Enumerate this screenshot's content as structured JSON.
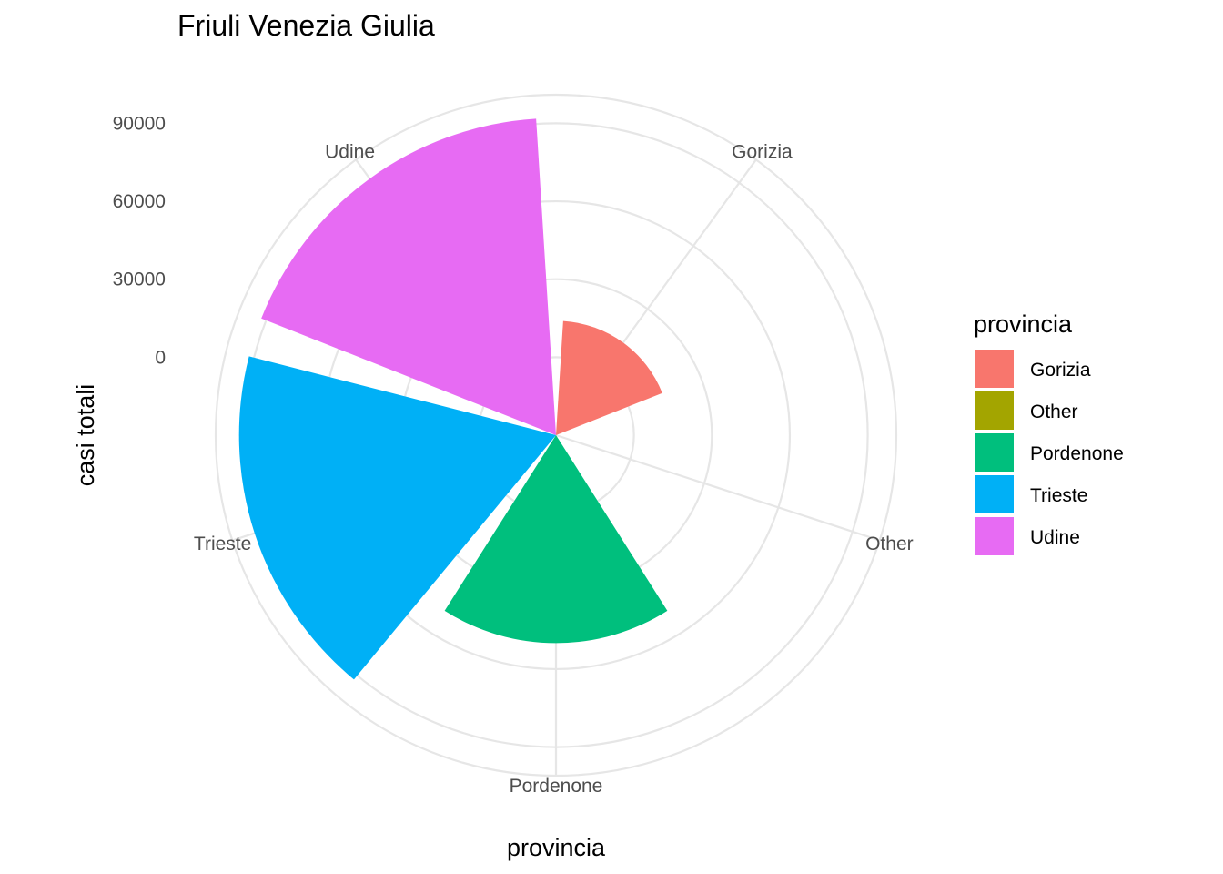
{
  "chart_data": {
    "type": "bar",
    "coord": "polar",
    "title": "Friuli Venezia Giulia",
    "xlabel": "provincia",
    "ylabel": "casi totali",
    "categories": [
      "Gorizia",
      "Other",
      "Pordenone",
      "Trieste",
      "Udine"
    ],
    "values": [
      14000,
      0,
      50000,
      92000,
      92000
    ],
    "colors": [
      "#F8766D",
      "#A3A500",
      "#00BF7D",
      "#00B0F6",
      "#E76BF3"
    ],
    "y_ticks": [
      0,
      30000,
      60000,
      90000
    ],
    "y_tick_labels": [
      "0",
      "30000",
      "60000",
      "90000"
    ],
    "ylim": [
      -30000,
      101000
    ],
    "grid": true,
    "legend": {
      "title": "provincia",
      "position": "right",
      "entries": [
        "Gorizia",
        "Other",
        "Pordenone",
        "Trieste",
        "Udine"
      ]
    }
  }
}
